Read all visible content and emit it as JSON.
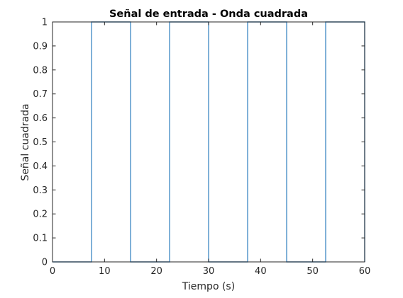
{
  "chart_data": {
    "type": "line",
    "title": "Señal de entrada - Onda cuadrada",
    "xlabel": "Tiempo (s)",
    "ylabel": "Señal cuadrada",
    "xlim": [
      0,
      60
    ],
    "ylim": [
      0,
      1
    ],
    "grid": false,
    "x_ticks": [
      "0",
      "10",
      "20",
      "30",
      "40",
      "50",
      "60"
    ],
    "y_ticks": [
      "0",
      "0.1",
      "0.2",
      "0.3",
      "0.4",
      "0.5",
      "0.6",
      "0.7",
      "0.8",
      "0.9",
      "1"
    ],
    "series": [
      {
        "color": "#4a90c8",
        "x": [
          0,
          7.5,
          7.5,
          15,
          15,
          22.5,
          22.5,
          30,
          30,
          37.5,
          37.5,
          45,
          45,
          52.5,
          52.5,
          60,
          60
        ],
        "y": [
          0,
          0,
          1,
          1,
          0,
          0,
          1,
          1,
          0,
          0,
          1,
          1,
          0,
          0,
          1,
          1,
          0
        ]
      }
    ]
  }
}
